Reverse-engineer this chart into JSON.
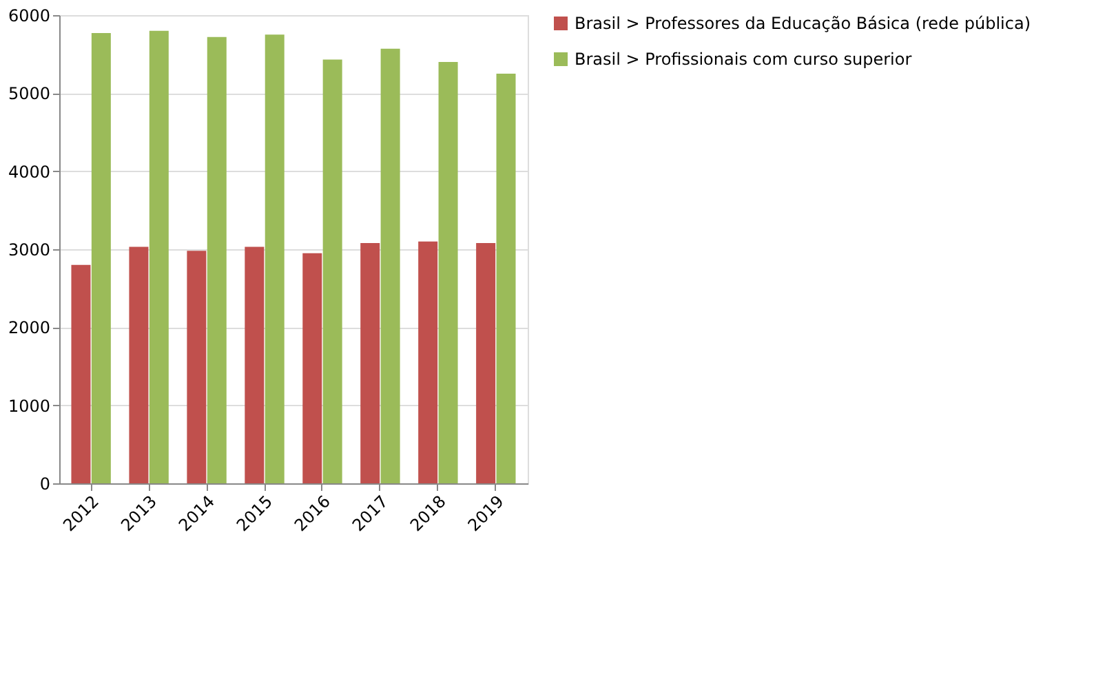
{
  "chart_data": {
    "type": "bar",
    "categories": [
      "2012",
      "2013",
      "2014",
      "2015",
      "2016",
      "2017",
      "2018",
      "2019"
    ],
    "series": [
      {
        "name": "Brasil  > Professores da Educação Básica (rede pública)",
        "color": "#c0504d",
        "values": [
          2800,
          3030,
          2980,
          3030,
          2950,
          3080,
          3100,
          3080
        ]
      },
      {
        "name": "Brasil  > Profissionais com curso superior",
        "color": "#9bbb59",
        "values": [
          5770,
          5800,
          5720,
          5750,
          5430,
          5570,
          5400,
          5250
        ]
      }
    ],
    "ylim": [
      0,
      6000
    ],
    "yticks": [
      0,
      1000,
      2000,
      3000,
      4000,
      5000,
      6000
    ],
    "grid": "y",
    "legend": "right"
  }
}
